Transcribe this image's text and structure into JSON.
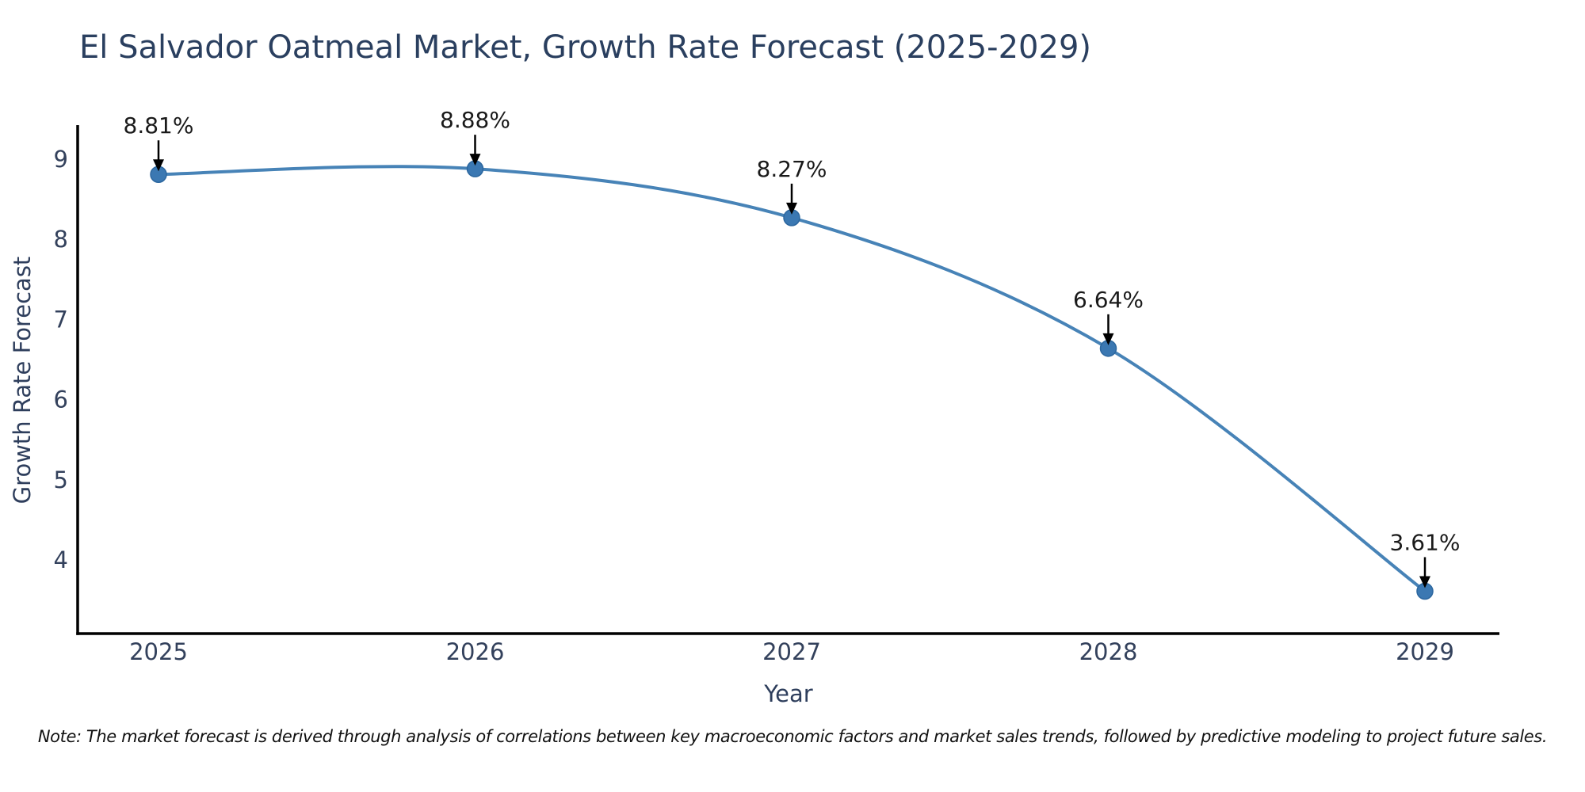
{
  "chart_data": {
    "type": "line",
    "title": "El Salvador Oatmeal Market, Growth Rate Forecast (2025-2029)",
    "xlabel": "Year",
    "ylabel": "Growth Rate Forecast",
    "categories": [
      "2025",
      "2026",
      "2027",
      "2028",
      "2029"
    ],
    "values": [
      8.81,
      8.88,
      8.27,
      6.64,
      3.61
    ],
    "point_labels": [
      "8.81%",
      "8.88%",
      "8.27%",
      "6.64%",
      "3.61%"
    ],
    "yticks": [
      "4",
      "5",
      "6",
      "7",
      "8",
      "9"
    ],
    "ylim": [
      3.08,
      9.41
    ],
    "xlim_categories_padding": "points inset ~100px from spine ends",
    "grid": false,
    "legend": "none",
    "line_color": "#4783b7",
    "marker_color": "#3b78b2",
    "marker_edge_color": "#2c679f",
    "axis_color": "#000000",
    "annotation_arrow_color": "#000000",
    "title_color": "#2a3f5f",
    "tick_color": "#33415c",
    "annotation_text_color": "#1a1a1a"
  },
  "note": "Note: The market forecast is derived through analysis of correlations between key macroeconomic factors and market sales trends, followed by predictive modeling to project future sales."
}
